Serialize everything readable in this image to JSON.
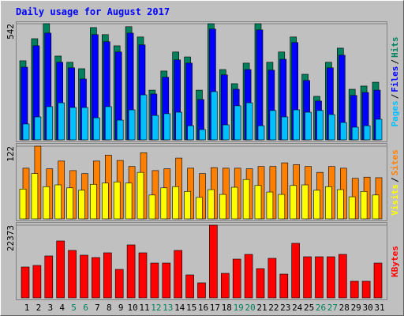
{
  "chart_data": [
    {
      "type": "bar",
      "title": "Daily usage for August 2017",
      "ylim": [
        0,
        542
      ],
      "yticks": [
        542
      ],
      "legend_separator": "/",
      "series": [
        {
          "name": "Hits",
          "color": "#00805c",
          "values": [
            369,
            472,
            542,
            391,
            362,
            332,
            524,
            491,
            439,
            528,
            480,
            232,
            321,
            410,
            387,
            232,
            542,
            328,
            262,
            358,
            542,
            362,
            410,
            480,
            306,
            203,
            362,
            428,
            236,
            251,
            269
          ]
        },
        {
          "name": "Files",
          "color": "#0000ff",
          "values": [
            339,
            439,
            498,
            362,
            336,
            284,
            491,
            458,
            410,
            498,
            443,
            214,
            292,
            373,
            358,
            188,
            517,
            303,
            236,
            328,
            513,
            325,
            376,
            454,
            277,
            181,
            336,
            395,
            207,
            221,
            232
          ]
        },
        {
          "name": "Pages",
          "color": "#00c0ff",
          "values": [
            74,
            107,
            155,
            173,
            151,
            151,
            103,
            155,
            92,
            140,
            210,
            114,
            122,
            129,
            66,
            48,
            225,
            70,
            159,
            173,
            66,
            137,
            107,
            140,
            129,
            137,
            118,
            81,
            59,
            66,
            96
          ]
        }
      ]
    },
    {
      "type": "bar",
      "ylim": [
        0,
        122
      ],
      "yticks": [
        122
      ],
      "legend_separator": "/",
      "series": [
        {
          "name": "Sites",
          "color": "#ff8000",
          "values": [
            85,
            122,
            84,
            97,
            81,
            76,
            97,
            107,
            98,
            88,
            111,
            81,
            84,
            102,
            85,
            76,
            86,
            85,
            85,
            84,
            88,
            88,
            94,
            91,
            88,
            78,
            88,
            85,
            68,
            70,
            69
          ]
        },
        {
          "name": "Visits",
          "color": "#ffff00",
          "values": [
            50,
            76,
            54,
            57,
            52,
            48,
            58,
            60,
            62,
            60,
            78,
            40,
            52,
            54,
            46,
            36,
            49,
            41,
            53,
            66,
            56,
            45,
            41,
            56,
            57,
            48,
            54,
            49,
            37,
            46,
            40
          ]
        }
      ]
    },
    {
      "type": "bar",
      "ylim": [
        0,
        22373
      ],
      "yticks": [
        22373
      ],
      "categories": [
        "1",
        "2",
        "3",
        "4",
        "5",
        "6",
        "7",
        "8",
        "9",
        "10",
        "11",
        "12",
        "13",
        "14",
        "15",
        "16",
        "17",
        "18",
        "19",
        "20",
        "21",
        "22",
        "23",
        "24",
        "25",
        "26",
        "27",
        "28",
        "29",
        "30",
        "31"
      ],
      "category_colors": [
        "#000000",
        "#000000",
        "#000000",
        "#000000",
        "#00805c",
        "#00805c",
        "#000000",
        "#000000",
        "#000000",
        "#000000",
        "#000000",
        "#00805c",
        "#00805c",
        "#000000",
        "#000000",
        "#000000",
        "#000000",
        "#000000",
        "#00805c",
        "#00805c",
        "#000000",
        "#000000",
        "#000000",
        "#000000",
        "#000000",
        "#00805c",
        "#00805c",
        "#000000",
        "#000000",
        "#000000",
        "#000000"
      ],
      "series": [
        {
          "name": "KBytes",
          "color": "#ff0000",
          "values": [
            9485,
            9971,
            12890,
            17510,
            14592,
            13132,
            12403,
            13862,
            8755,
            16295,
            13862,
            10700,
            10700,
            14592,
            7053,
            4621,
            22373,
            7539,
            11917,
            13376,
            8998,
            12160,
            7296,
            16781,
            12646,
            12646,
            12646,
            13376,
            5107,
            5107,
            10700
          ]
        }
      ]
    }
  ]
}
